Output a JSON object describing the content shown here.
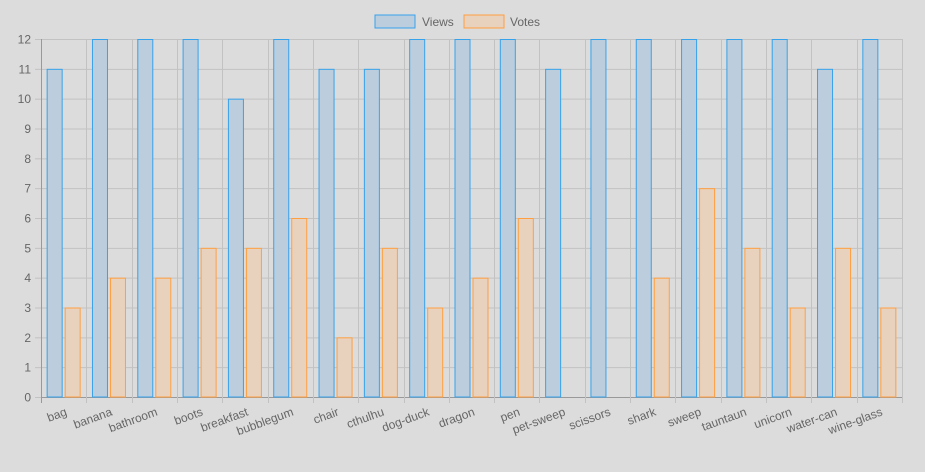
{
  "chart_data": {
    "type": "bar",
    "categories": [
      "bag",
      "banana",
      "bathroom",
      "boots",
      "breakfast",
      "bubblegum",
      "chair",
      "cthulhu",
      "dog-duck",
      "dragon",
      "pen",
      "pet-sweep",
      "scissors",
      "shark",
      "sweep",
      "tauntaun",
      "unicorn",
      "water-can",
      "wine-glass"
    ],
    "series": [
      {
        "name": "Views",
        "values": [
          11,
          12,
          12,
          12,
          10,
          12,
          11,
          11,
          12,
          12,
          12,
          11,
          12,
          12,
          12,
          12,
          12,
          11,
          12
        ],
        "fill": "#bccedd",
        "stroke": "#36a2eb"
      },
      {
        "name": "Votes",
        "values": [
          3,
          4,
          4,
          5,
          5,
          6,
          2,
          5,
          3,
          4,
          6,
          0,
          0,
          4,
          7,
          5,
          3,
          5,
          3
        ],
        "fill": "#e8d2be",
        "stroke": "#ff9f40"
      }
    ],
    "ylim": [
      0,
      12
    ],
    "y_ticks": [
      "0",
      "1",
      "2",
      "3",
      "4",
      "5",
      "6",
      "7",
      "8",
      "9",
      "10",
      "11",
      "12"
    ],
    "legend_position": "top",
    "grid": true,
    "grid_color": "#c2c2c2",
    "axis_color": "#999999",
    "text_color": "#666666"
  }
}
